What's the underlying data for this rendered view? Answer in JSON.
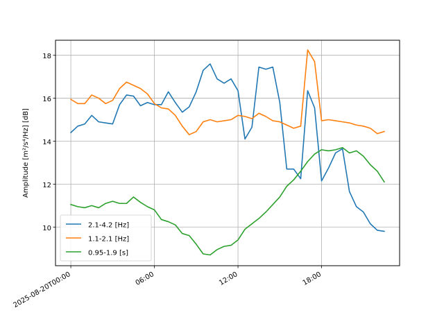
{
  "chart_data": {
    "type": "line",
    "title": "",
    "xlabel": "",
    "ylabel_prefix": "Amplitude ",
    "ylabel_unit": "[m²/s⁴/Hz] [dB]",
    "x_tick_labels": [
      "2025-08-20T00:00",
      "06:00",
      "12:00",
      "18:00"
    ],
    "x_tick_hours": [
      0,
      6,
      12,
      18
    ],
    "xlim_hours": [
      -1.1,
      23.6
    ],
    "ylim": [
      8.2,
      18.7
    ],
    "y_ticks": [
      10,
      12,
      14,
      16,
      18
    ],
    "y_tick_labels": [
      "10",
      "12",
      "14",
      "16",
      "18"
    ],
    "grid": true,
    "legend_placement": "lower-left",
    "x_hours": [
      0,
      0.5,
      1,
      1.5,
      2,
      2.5,
      3,
      3.5,
      4,
      4.5,
      5,
      5.5,
      6,
      6.5,
      7,
      7.5,
      8,
      8.5,
      9,
      9.5,
      10,
      10.5,
      11,
      11.5,
      12,
      12.5,
      13,
      13.5,
      14,
      14.5,
      15,
      15.5,
      16,
      16.5,
      17,
      17.5,
      18,
      18.5,
      19,
      19.5,
      20,
      20.5,
      21,
      21.5,
      22,
      22.5
    ],
    "series": [
      {
        "name": "2.1-4.2 [Hz]",
        "color": "#1f77b4",
        "values": [
          14.4,
          14.7,
          14.8,
          15.2,
          14.9,
          14.85,
          14.8,
          15.7,
          16.15,
          16.1,
          15.65,
          15.8,
          15.7,
          15.7,
          16.3,
          15.8,
          15.35,
          15.6,
          16.3,
          17.3,
          17.6,
          16.9,
          16.7,
          16.9,
          16.35,
          14.1,
          14.65,
          17.45,
          17.35,
          17.45,
          15.8,
          12.7,
          12.7,
          12.25,
          16.35,
          15.55,
          12.15,
          12.75,
          13.45,
          13.65,
          11.65,
          10.95,
          10.7,
          10.15,
          9.85,
          9.8
        ]
      },
      {
        "name": "1.1-2.1 [Hz]",
        "color": "#ff7f0e",
        "values": [
          15.95,
          15.75,
          15.75,
          16.15,
          16.0,
          15.75,
          15.9,
          16.45,
          16.75,
          16.6,
          16.45,
          16.2,
          15.75,
          15.55,
          15.5,
          15.2,
          14.7,
          14.3,
          14.45,
          14.9,
          15.0,
          14.9,
          14.95,
          15.0,
          15.2,
          15.15,
          15.05,
          15.3,
          15.15,
          14.95,
          14.9,
          14.75,
          14.6,
          14.7,
          18.25,
          17.7,
          14.95,
          15.0,
          14.95,
          14.9,
          14.85,
          14.75,
          14.7,
          14.6,
          14.35,
          14.45
        ]
      },
      {
        "name": "0.95-1.9 [s]",
        "color": "#2ca02c",
        "values": [
          11.05,
          10.95,
          10.9,
          11.0,
          10.9,
          11.1,
          11.2,
          11.1,
          11.1,
          11.4,
          11.15,
          10.95,
          10.8,
          10.35,
          10.25,
          10.1,
          9.7,
          9.6,
          9.2,
          8.75,
          8.7,
          8.95,
          9.1,
          9.15,
          9.4,
          9.9,
          10.15,
          10.4,
          10.7,
          11.05,
          11.4,
          11.9,
          12.2,
          12.6,
          13.05,
          13.4,
          13.6,
          13.55,
          13.6,
          13.7,
          13.45,
          13.55,
          13.3,
          12.9,
          12.6,
          12.1
        ]
      }
    ]
  }
}
